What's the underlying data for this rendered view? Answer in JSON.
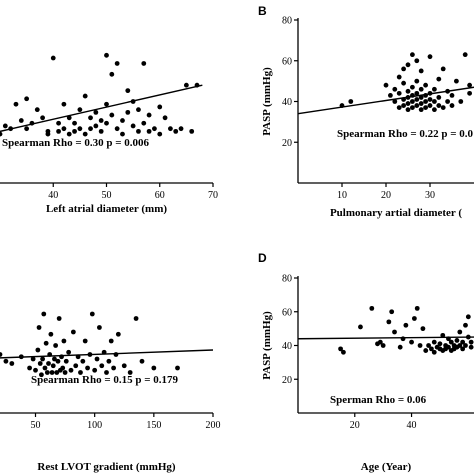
{
  "chart_data": [
    {
      "panel": "A",
      "type": "scatter",
      "panel_label": "",
      "xlabel": "Left atrial diameter (mm)",
      "ylabel": "",
      "xlim": [
        30,
        70
      ],
      "ylim": [
        20,
        80
      ],
      "xticks": [
        40,
        50,
        60,
        70
      ],
      "yticks": [],
      "annotation": "Spearman Rho = 0.30 p = 0.006",
      "fit_line": {
        "x": [
          30,
          68
        ],
        "y": [
          39,
          56
        ]
      },
      "points": [
        [
          30,
          38
        ],
        [
          31,
          41
        ],
        [
          32,
          40
        ],
        [
          33,
          49
        ],
        [
          34,
          43
        ],
        [
          35,
          51
        ],
        [
          35,
          40
        ],
        [
          36,
          42
        ],
        [
          37,
          47
        ],
        [
          38,
          44
        ],
        [
          39,
          39
        ],
        [
          39,
          38
        ],
        [
          40,
          66
        ],
        [
          41,
          42
        ],
        [
          41,
          39
        ],
        [
          42,
          49
        ],
        [
          42,
          40
        ],
        [
          43,
          44
        ],
        [
          43,
          38
        ],
        [
          44,
          39
        ],
        [
          44,
          42
        ],
        [
          45,
          40
        ],
        [
          45,
          47
        ],
        [
          46,
          52
        ],
        [
          46,
          38
        ],
        [
          47,
          44
        ],
        [
          47,
          40
        ],
        [
          48,
          41
        ],
        [
          48,
          46
        ],
        [
          49,
          43
        ],
        [
          49,
          39
        ],
        [
          50,
          67
        ],
        [
          50,
          49
        ],
        [
          50,
          42
        ],
        [
          51,
          60
        ],
        [
          51,
          45
        ],
        [
          52,
          64
        ],
        [
          52,
          40
        ],
        [
          53,
          43
        ],
        [
          53,
          38
        ],
        [
          54,
          54
        ],
        [
          54,
          46
        ],
        [
          55,
          41
        ],
        [
          55,
          50
        ],
        [
          56,
          47
        ],
        [
          56,
          39
        ],
        [
          57,
          64
        ],
        [
          57,
          42
        ],
        [
          58,
          45
        ],
        [
          58,
          39
        ],
        [
          59,
          40
        ],
        [
          60,
          48
        ],
        [
          60,
          38
        ],
        [
          61,
          44
        ],
        [
          62,
          40
        ],
        [
          63,
          39
        ],
        [
          64,
          40
        ],
        [
          65,
          56
        ],
        [
          66,
          39
        ],
        [
          67,
          56
        ]
      ]
    },
    {
      "panel": "B",
      "type": "scatter",
      "panel_label": "B",
      "xlabel": "Pulmonary artial diameter (",
      "ylabel": "PASP (mmHg)",
      "xlim": [
        0,
        40
      ],
      "ylim": [
        0,
        80
      ],
      "xticks": [
        10,
        20,
        30
      ],
      "yticks": [
        20,
        40,
        60,
        80
      ],
      "annotation": "Spearman Rho = 0.22  p = 0.0",
      "fit_line": {
        "x": [
          0,
          40
        ],
        "y": [
          34,
          47
        ]
      },
      "points": [
        [
          10,
          38
        ],
        [
          12,
          40
        ],
        [
          20,
          48
        ],
        [
          21,
          43
        ],
        [
          22,
          40
        ],
        [
          22,
          46
        ],
        [
          23,
          37
        ],
        [
          23,
          44
        ],
        [
          23,
          52
        ],
        [
          24,
          38
        ],
        [
          24,
          41
        ],
        [
          24,
          49
        ],
        [
          24,
          56
        ],
        [
          25,
          36
        ],
        [
          25,
          39
        ],
        [
          25,
          42
        ],
        [
          25,
          45
        ],
        [
          25,
          58
        ],
        [
          26,
          37
        ],
        [
          26,
          40
        ],
        [
          26,
          43
        ],
        [
          26,
          47
        ],
        [
          26,
          63
        ],
        [
          27,
          38
        ],
        [
          27,
          41
        ],
        [
          27,
          44
        ],
        [
          27,
          50
        ],
        [
          27,
          60
        ],
        [
          28,
          36
        ],
        [
          28,
          39
        ],
        [
          28,
          42
        ],
        [
          28,
          46
        ],
        [
          28,
          55
        ],
        [
          29,
          37
        ],
        [
          29,
          40
        ],
        [
          29,
          43
        ],
        [
          29,
          48
        ],
        [
          30,
          38
        ],
        [
          30,
          41
        ],
        [
          30,
          44
        ],
        [
          30,
          62
        ],
        [
          31,
          36
        ],
        [
          31,
          40
        ],
        [
          31,
          46
        ],
        [
          32,
          38
        ],
        [
          32,
          42
        ],
        [
          32,
          51
        ],
        [
          33,
          37
        ],
        [
          33,
          56
        ],
        [
          34,
          40
        ],
        [
          34,
          45
        ],
        [
          35,
          38
        ],
        [
          35,
          43
        ],
        [
          36,
          50
        ],
        [
          37,
          40
        ],
        [
          38,
          63
        ],
        [
          39,
          44
        ],
        [
          39,
          48
        ]
      ]
    },
    {
      "panel": "C",
      "type": "scatter",
      "panel_label": "",
      "xlabel": "Rest LVOT gradient (mmHg)",
      "ylabel": "",
      "xlim": [
        20,
        200
      ],
      "ylim": [
        20,
        80
      ],
      "xticks": [
        50,
        100,
        150,
        200
      ],
      "yticks": [],
      "annotation": "Spearman Rho = 0.15  p = 0.179",
      "fit_line": {
        "x": [
          20,
          200
        ],
        "y": [
          44.5,
          48
        ]
      },
      "points": [
        [
          20,
          46
        ],
        [
          25,
          43
        ],
        [
          30,
          42
        ],
        [
          38,
          45
        ],
        [
          45,
          40
        ],
        [
          48,
          44
        ],
        [
          50,
          39
        ],
        [
          52,
          48
        ],
        [
          53,
          58
        ],
        [
          54,
          42
        ],
        [
          55,
          37
        ],
        [
          56,
          44
        ],
        [
          57,
          64
        ],
        [
          58,
          40
        ],
        [
          59,
          51
        ],
        [
          60,
          38
        ],
        [
          61,
          42
        ],
        [
          62,
          46
        ],
        [
          63,
          55
        ],
        [
          64,
          38
        ],
        [
          65,
          41
        ],
        [
          66,
          44
        ],
        [
          67,
          50
        ],
        [
          68,
          38
        ],
        [
          69,
          43
        ],
        [
          70,
          62
        ],
        [
          71,
          39
        ],
        [
          72,
          45
        ],
        [
          73,
          40
        ],
        [
          74,
          52
        ],
        [
          75,
          38
        ],
        [
          76,
          43
        ],
        [
          78,
          47
        ],
        [
          80,
          39
        ],
        [
          82,
          56
        ],
        [
          84,
          41
        ],
        [
          86,
          45
        ],
        [
          88,
          38
        ],
        [
          90,
          43
        ],
        [
          92,
          52
        ],
        [
          94,
          40
        ],
        [
          96,
          46
        ],
        [
          98,
          64
        ],
        [
          100,
          39
        ],
        [
          102,
          44
        ],
        [
          104,
          58
        ],
        [
          106,
          41
        ],
        [
          108,
          47
        ],
        [
          110,
          38
        ],
        [
          112,
          43
        ],
        [
          114,
          52
        ],
        [
          116,
          40
        ],
        [
          118,
          46
        ],
        [
          120,
          55
        ],
        [
          125,
          41
        ],
        [
          130,
          38
        ],
        [
          135,
          62
        ],
        [
          140,
          43
        ],
        [
          150,
          40
        ],
        [
          170,
          40
        ]
      ]
    },
    {
      "panel": "D",
      "type": "scatter",
      "panel_label": "D",
      "xlabel": "Age (Year)",
      "ylabel": "PASP (mmHg)",
      "xlim": [
        0,
        62
      ],
      "ylim": [
        0,
        80
      ],
      "xticks": [
        20,
        40
      ],
      "yticks": [
        20,
        40,
        60,
        80
      ],
      "annotation": "Sperman Rho = 0.06",
      "fit_line": {
        "x": [
          0,
          62
        ],
        "y": [
          44,
          45
        ]
      },
      "points": [
        [
          15,
          38
        ],
        [
          16,
          36
        ],
        [
          22,
          51
        ],
        [
          26,
          62
        ],
        [
          28,
          41
        ],
        [
          29,
          42
        ],
        [
          30,
          40
        ],
        [
          32,
          54
        ],
        [
          33,
          60
        ],
        [
          34,
          48
        ],
        [
          36,
          39
        ],
        [
          37,
          44
        ],
        [
          38,
          52
        ],
        [
          40,
          42
        ],
        [
          41,
          56
        ],
        [
          42,
          62
        ],
        [
          43,
          40
        ],
        [
          44,
          50
        ],
        [
          45,
          37
        ],
        [
          46,
          40
        ],
        [
          47,
          38
        ],
        [
          48,
          42
        ],
        [
          48,
          36
        ],
        [
          49,
          39
        ],
        [
          50,
          41
        ],
        [
          50,
          38
        ],
        [
          51,
          46
        ],
        [
          51,
          37
        ],
        [
          52,
          40
        ],
        [
          52,
          38
        ],
        [
          53,
          44
        ],
        [
          53,
          39
        ],
        [
          54,
          42
        ],
        [
          54,
          37
        ],
        [
          55,
          40
        ],
        [
          55,
          38
        ],
        [
          56,
          43
        ],
        [
          56,
          39
        ],
        [
          57,
          48
        ],
        [
          57,
          40
        ],
        [
          58,
          42
        ],
        [
          58,
          38
        ],
        [
          59,
          52
        ],
        [
          59,
          40
        ],
        [
          60,
          57
        ],
        [
          60,
          45
        ],
        [
          61,
          42
        ],
        [
          61,
          39
        ]
      ]
    }
  ]
}
